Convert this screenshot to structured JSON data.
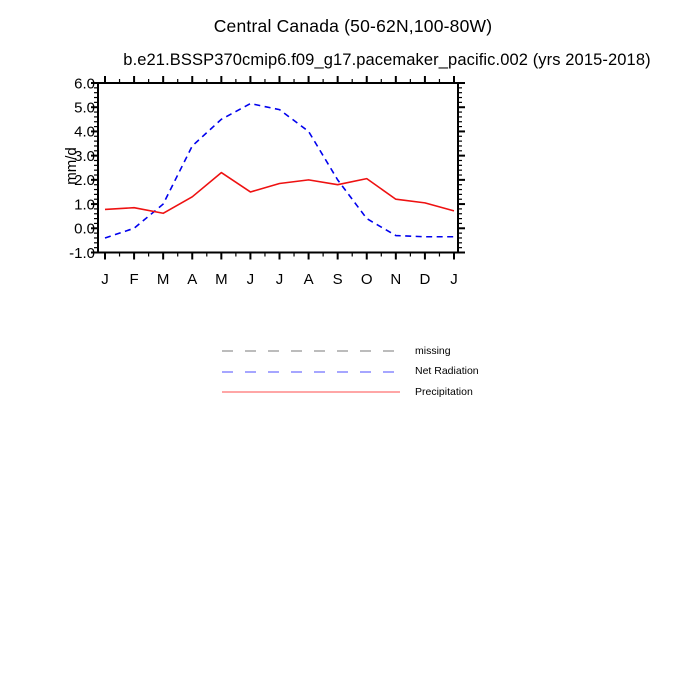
{
  "page": {
    "background": "#ffffff"
  },
  "chart": {
    "title": "Central Canada (50-62N,100-80W)",
    "subtitle": "b.e21.BSSP370cmip6.f09_g17.pacemaker_pacific.002 (yrs 2015-2018)"
  },
  "chart_data": {
    "type": "line",
    "title": "Central Canada (50-62N,100-80W)",
    "subtitle": "b.e21.BSSP370cmip6.f09_g17.pacemaker_pacific.002 (yrs 2015-2018)",
    "xlabel": "",
    "ylabel": "mm/d",
    "categories": [
      "J",
      "F",
      "M",
      "A",
      "M",
      "J",
      "J",
      "A",
      "S",
      "O",
      "N",
      "D",
      "J"
    ],
    "ylim": [
      -1.0,
      6.0
    ],
    "y_major_ticks": [
      -1.0,
      0.0,
      1.0,
      2.0,
      3.0,
      4.0,
      5.0,
      6.0
    ],
    "y_minor_step": 0.2,
    "grid": false,
    "frame_color": "#000000",
    "series": [
      {
        "name": "Net Radiation",
        "color": "#0000ee",
        "line_style": "dashed",
        "values": [
          -0.4,
          0.0,
          1.0,
          3.4,
          4.5,
          5.15,
          4.9,
          4.0,
          2.0,
          0.4,
          -0.3,
          -0.35,
          -0.35
        ]
      },
      {
        "name": "Precipitation",
        "color": "#ee1111",
        "line_style": "solid",
        "values": [
          0.78,
          0.85,
          0.62,
          1.3,
          2.3,
          1.5,
          1.85,
          2.0,
          1.8,
          2.05,
          1.2,
          1.05,
          0.72
        ]
      }
    ],
    "legend": {
      "position": "bottom",
      "entries": [
        {
          "label": "missing",
          "color": "#b3b3b3",
          "line_style": "dashed"
        },
        {
          "label": "Net Radiation",
          "color": "#9999ff",
          "line_style": "dashed"
        },
        {
          "label": "Precipitation",
          "color": "#ff9999",
          "line_style": "solid"
        }
      ]
    }
  }
}
